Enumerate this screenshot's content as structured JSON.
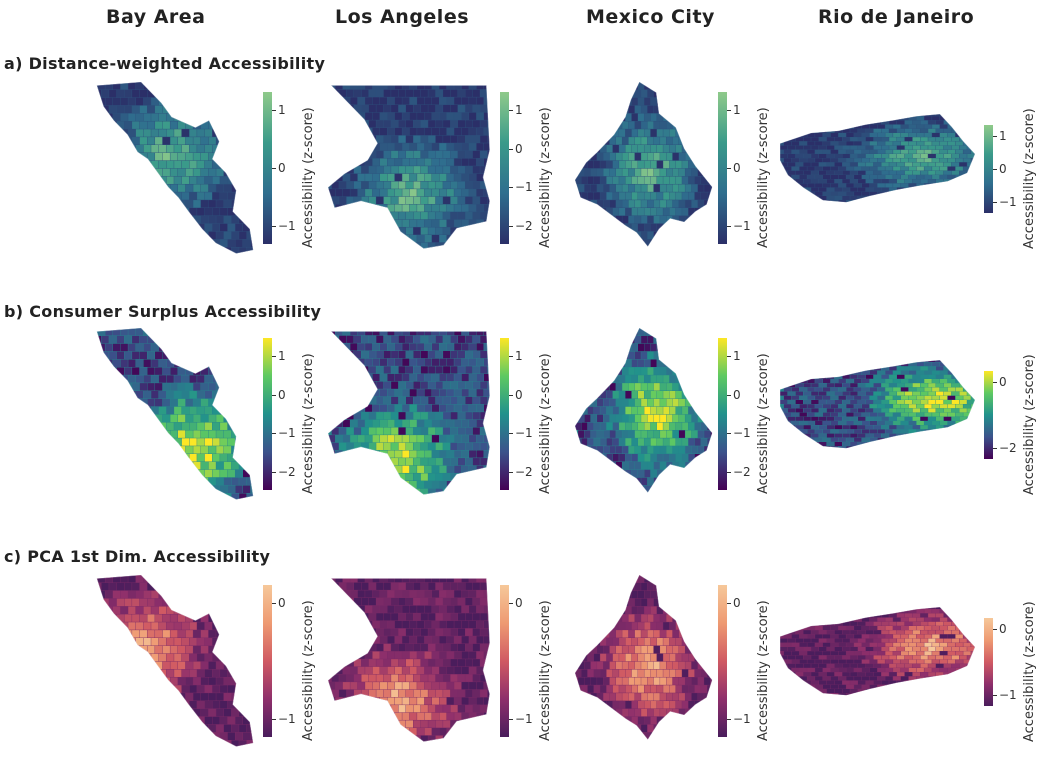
{
  "columns": [
    "Bay Area",
    "Los Angeles",
    "Mexico City",
    "Rio de Janeiro"
  ],
  "rows": [
    {
      "label": "a)  Distance-weighted Accessibility",
      "colormap": "viridis-crest",
      "colorbars": [
        {
          "ticks": [
            "1",
            "0",
            "−1"
          ],
          "label": "Accessibility (z-score)"
        },
        {
          "ticks": [
            "1",
            "0",
            "−1",
            "−2"
          ],
          "label": "Accessibility (z-score)"
        },
        {
          "ticks": [
            "1",
            "0",
            "−1"
          ],
          "label": "Accessibility (z-score)"
        },
        {
          "ticks": [
            "1",
            "0",
            "−1"
          ],
          "label": "Accessibility (z-score)"
        }
      ]
    },
    {
      "label": "b)  Consumer Surplus Accessibility",
      "colormap": "viridis",
      "colorbars": [
        {
          "ticks": [
            "1",
            "0",
            "−1",
            "−2"
          ],
          "label": "Accessibility (z-score)"
        },
        {
          "ticks": [
            "1",
            "0",
            "−1",
            "−2"
          ],
          "label": "Accessibility (z-score)"
        },
        {
          "ticks": [
            "1",
            "0",
            "−1",
            "−2"
          ],
          "label": "Accessibility (z-score)"
        },
        {
          "ticks": [
            "0",
            "−2"
          ],
          "label": "Accessibility (z-score)"
        }
      ]
    },
    {
      "label": "c)  PCA 1st Dim. Accessibility",
      "colormap": "flare",
      "colorbars": [
        {
          "ticks": [
            "0",
            "−1"
          ],
          "label": "Accessibility (z-score)"
        },
        {
          "ticks": [
            "0",
            "−1"
          ],
          "label": "Accessibility (z-score)"
        },
        {
          "ticks": [
            "0",
            "−1"
          ],
          "label": "Accessibility (z-score)"
        },
        {
          "ticks": [
            "0",
            "−1"
          ],
          "label": "Accessibility (z-score)"
        }
      ]
    }
  ],
  "colors": {
    "viridis-crest": [
      "#2b2f68",
      "#2f6e8e",
      "#3a9a8a",
      "#8fca8a"
    ],
    "viridis": [
      "#440154",
      "#3b528b",
      "#21918c",
      "#5ec962",
      "#fde725"
    ],
    "flare": [
      "#4a1d5c",
      "#8e2f6b",
      "#d05a63",
      "#ee9a72",
      "#f6c89a"
    ]
  }
}
